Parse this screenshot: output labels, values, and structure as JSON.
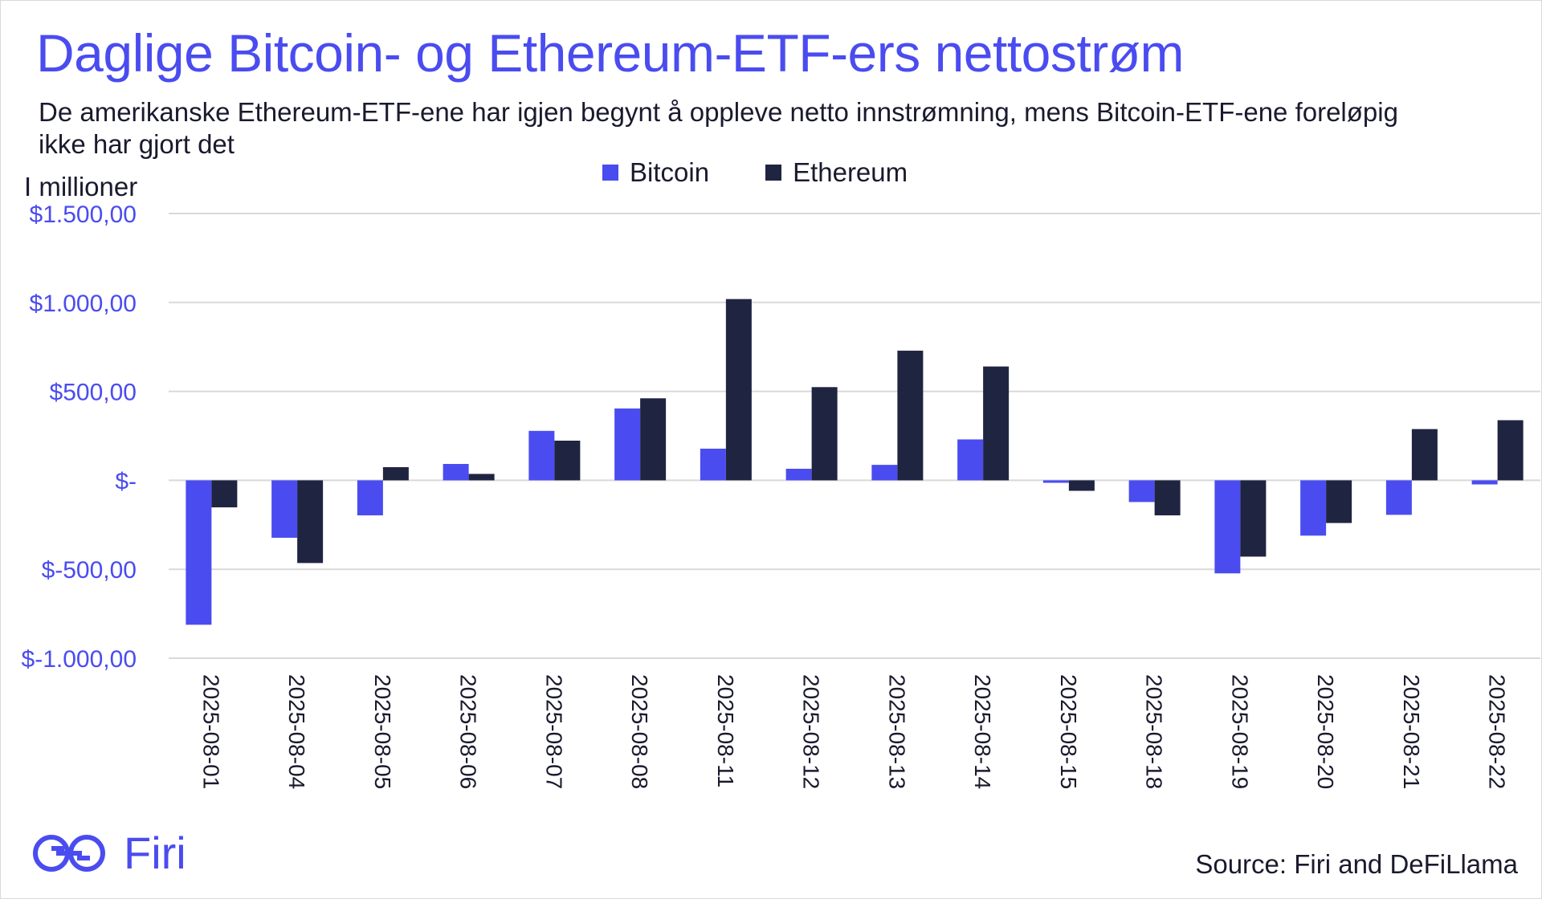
{
  "header": {
    "title": "Daglige Bitcoin- og Ethereum-ETF-ers nettostrøm",
    "subtitle": "De amerikanske Ethereum-ETF-ene har igjen begynt å oppleve netto innstrømning, mens Bitcoin-ETF-ene foreløpig ikke har gjort det"
  },
  "footer": {
    "brand": "Firi",
    "source": "Source: Firi and DeFiLlama"
  },
  "colors": {
    "bitcoin": "#4a4cf0",
    "ethereum": "#1f2441",
    "grid": "#d9d9d9",
    "accent": "#4a4cf0"
  },
  "chart_data": {
    "type": "bar",
    "ylabel": "I millioner",
    "ylim": [
      -1000,
      1500
    ],
    "yticks": [
      1500,
      1000,
      500,
      0,
      -500,
      -1000
    ],
    "ytick_labels": [
      "$1.500,00",
      "$1.000,00",
      "$500,00",
      "$-",
      "$-500,00",
      "$-1.000,00"
    ],
    "grid": "horizontal",
    "legend_position": "top-center",
    "categories": [
      "2025-08-01",
      "2025-08-04",
      "2025-08-05",
      "2025-08-06",
      "2025-08-07",
      "2025-08-08",
      "2025-08-11",
      "2025-08-12",
      "2025-08-13",
      "2025-08-14",
      "2025-08-15",
      "2025-08-18",
      "2025-08-19",
      "2025-08-20",
      "2025-08-21",
      "2025-08-22"
    ],
    "series": [
      {
        "name": "Bitcoin",
        "values": [
          -812,
          -323,
          -197,
          92,
          278,
          404,
          178,
          65,
          87,
          230,
          -14,
          -122,
          -523,
          -311,
          -194,
          -23
        ]
      },
      {
        "name": "Ethereum",
        "values": [
          -152,
          -465,
          74,
          36,
          223,
          461,
          1019,
          524,
          729,
          640,
          -59,
          -197,
          -429,
          -240,
          288,
          338
        ]
      }
    ]
  }
}
